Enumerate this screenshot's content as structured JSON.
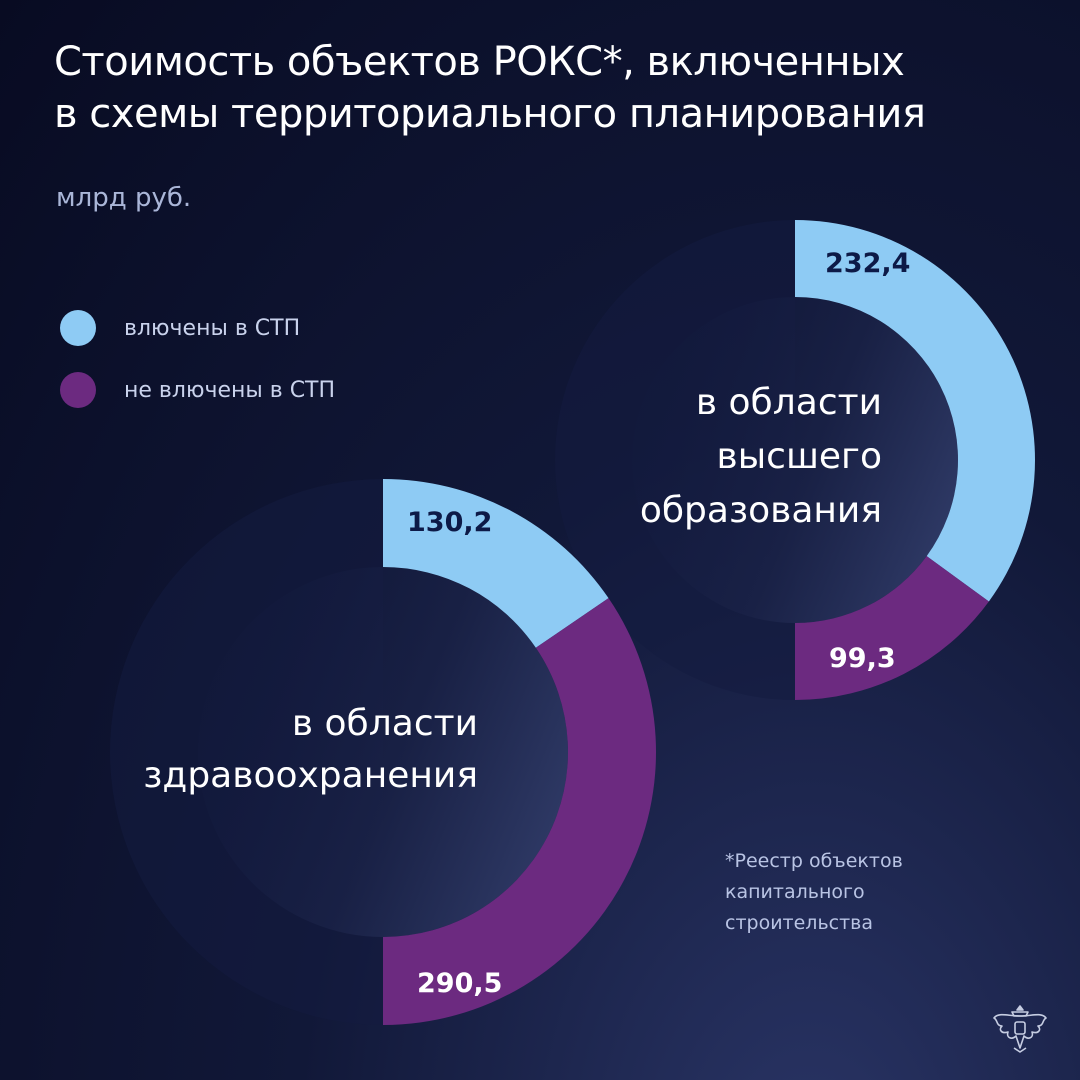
{
  "title_lines": [
    "Стоимость объектов РОКС*, включенных",
    "в схемы территориального планирования"
  ],
  "unit": "млрд руб.",
  "legend": [
    {
      "label": "влючены в СТП",
      "color": "#8ecbf4"
    },
    {
      "label": "не влючены в СТП",
      "color": "#6c2a80"
    }
  ],
  "footnote_lines": [
    "*Реестр объектов",
    "капитального",
    "строительства"
  ],
  "chart_data": [
    {
      "type": "pie",
      "title": "в области высшего образования",
      "title_lines": [
        "в области",
        "высшего",
        "образования"
      ],
      "categories": [
        "влючены в СТП",
        "не влючены в СТП"
      ],
      "values": [
        232.4,
        99.3
      ],
      "labels": [
        "232,4",
        "99,3"
      ],
      "colors": [
        "#8ecbf4",
        "#6c2a80"
      ],
      "label_colors": [
        "#0d1a47",
        "#ffffff"
      ]
    },
    {
      "type": "pie",
      "title": "в области здравоохранения",
      "title_lines": [
        "в области",
        "здравоохранения"
      ],
      "categories": [
        "влючены в СТП",
        "не влючены в СТП"
      ],
      "values": [
        130.2,
        290.5
      ],
      "labels": [
        "130,2",
        "290,5"
      ],
      "colors": [
        "#8ecbf4",
        "#6c2a80"
      ],
      "label_colors": [
        "#0d1a47",
        "#ffffff"
      ]
    }
  ]
}
